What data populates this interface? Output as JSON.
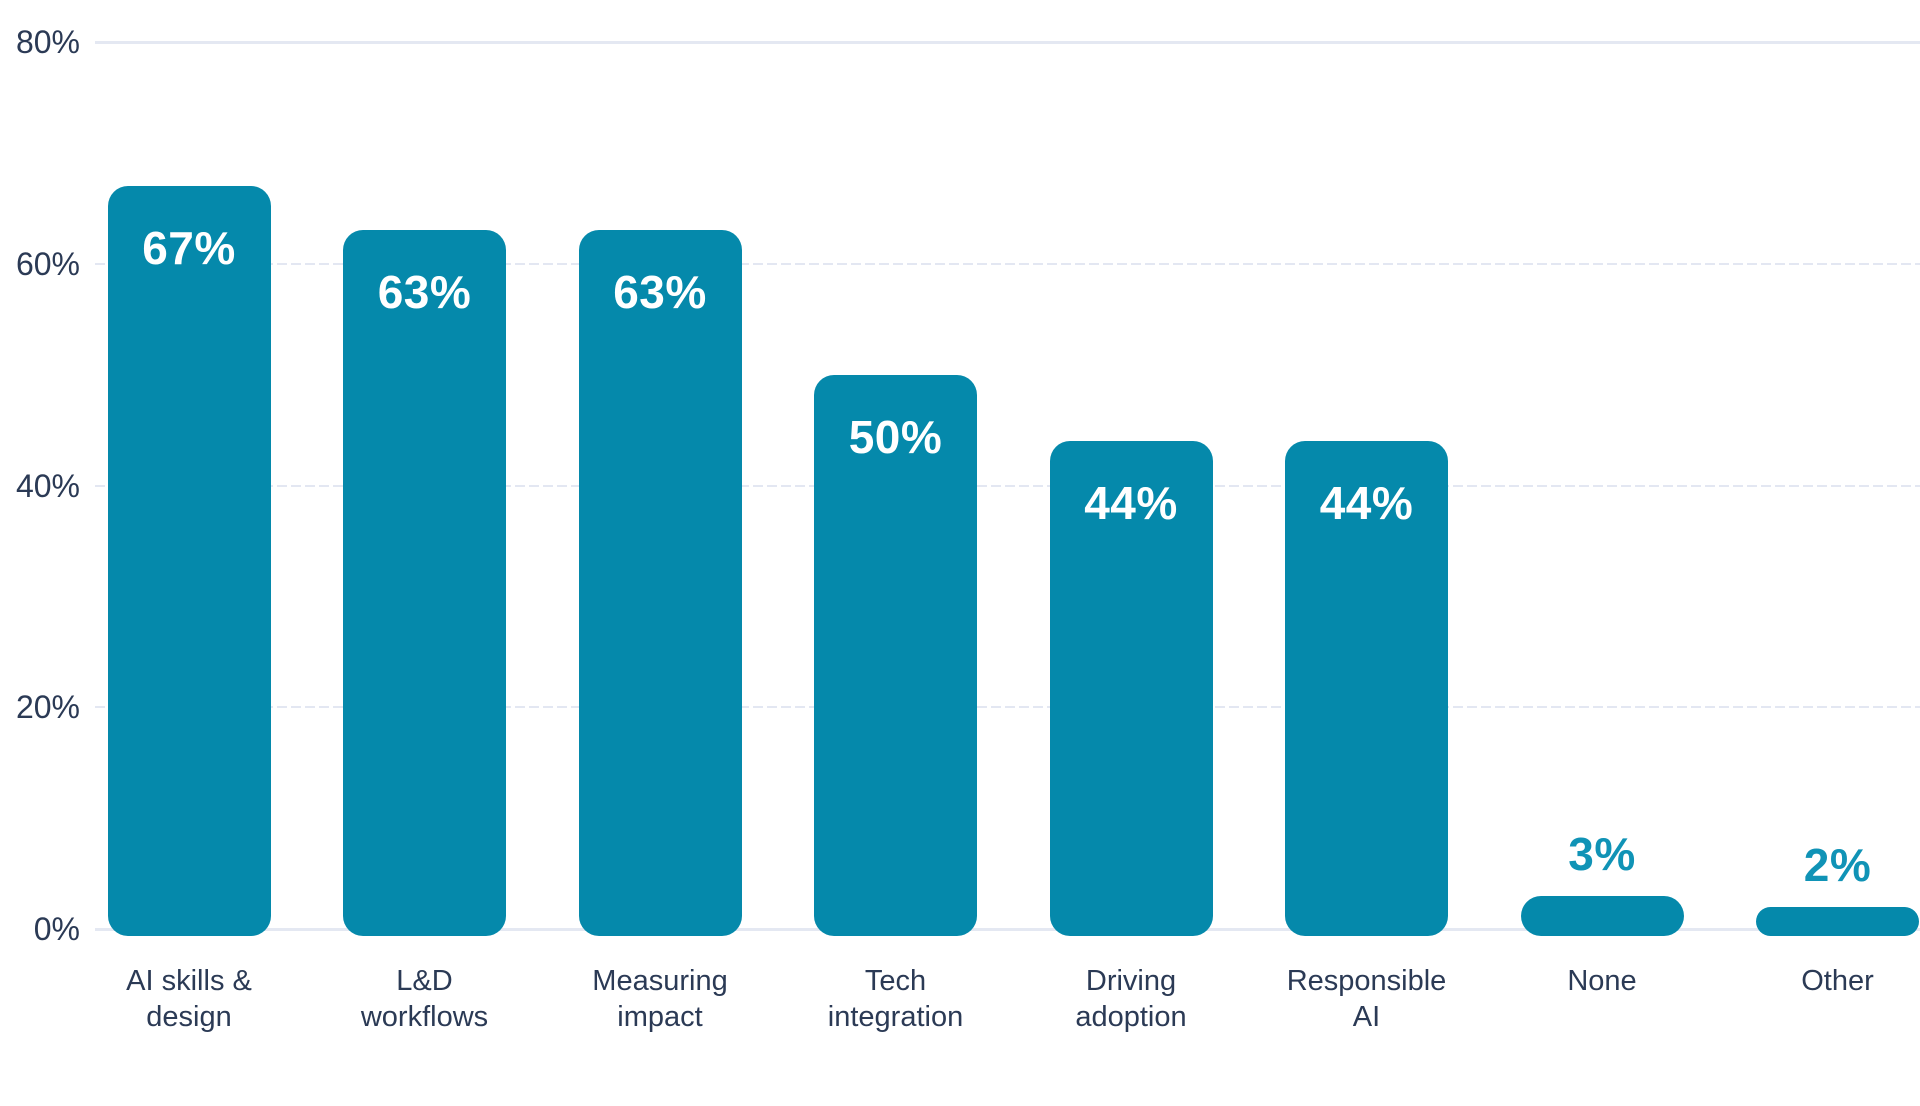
{
  "chart_data": {
    "type": "bar",
    "categories": [
      "AI skills & design",
      "L&D workflows",
      "Measuring impact",
      "Tech integration",
      "Driving adoption",
      "Responsible AI",
      "None",
      "Other"
    ],
    "categories_display": [
      "AI skills &\ndesign",
      "L&D\nworkflows",
      "Measuring\nimpact",
      "Tech\nintegration",
      "Driving\nadoption",
      "Responsible\nAI",
      "None",
      "Other"
    ],
    "values": [
      67,
      63,
      63,
      50,
      44,
      44,
      3,
      2
    ],
    "value_labels": [
      "67%",
      "63%",
      "63%",
      "50%",
      "44%",
      "44%",
      "3%",
      "2%"
    ],
    "title": "",
    "xlabel": "",
    "ylabel": "",
    "ylim": [
      0,
      80
    ],
    "yticks": [
      0,
      20,
      40,
      60,
      80
    ],
    "ytick_labels": [
      "0%",
      "20%",
      "40%",
      "60%",
      "80%"
    ],
    "grid": "horizontal, inner lines dashed, top and baseline solid",
    "legend": "none",
    "value_label_placement": "inside bar top for large bars, above bar for small bars",
    "colors": {
      "bar": "#0589AB",
      "value_label_inside": "#FFFFFF",
      "value_label_outside": "#1093B6",
      "axis_text": "#2B3A55",
      "gridline_dashed": "#E3E7F2",
      "gridline_solid": "#E4E8F2",
      "background": "#FFFFFF"
    }
  }
}
